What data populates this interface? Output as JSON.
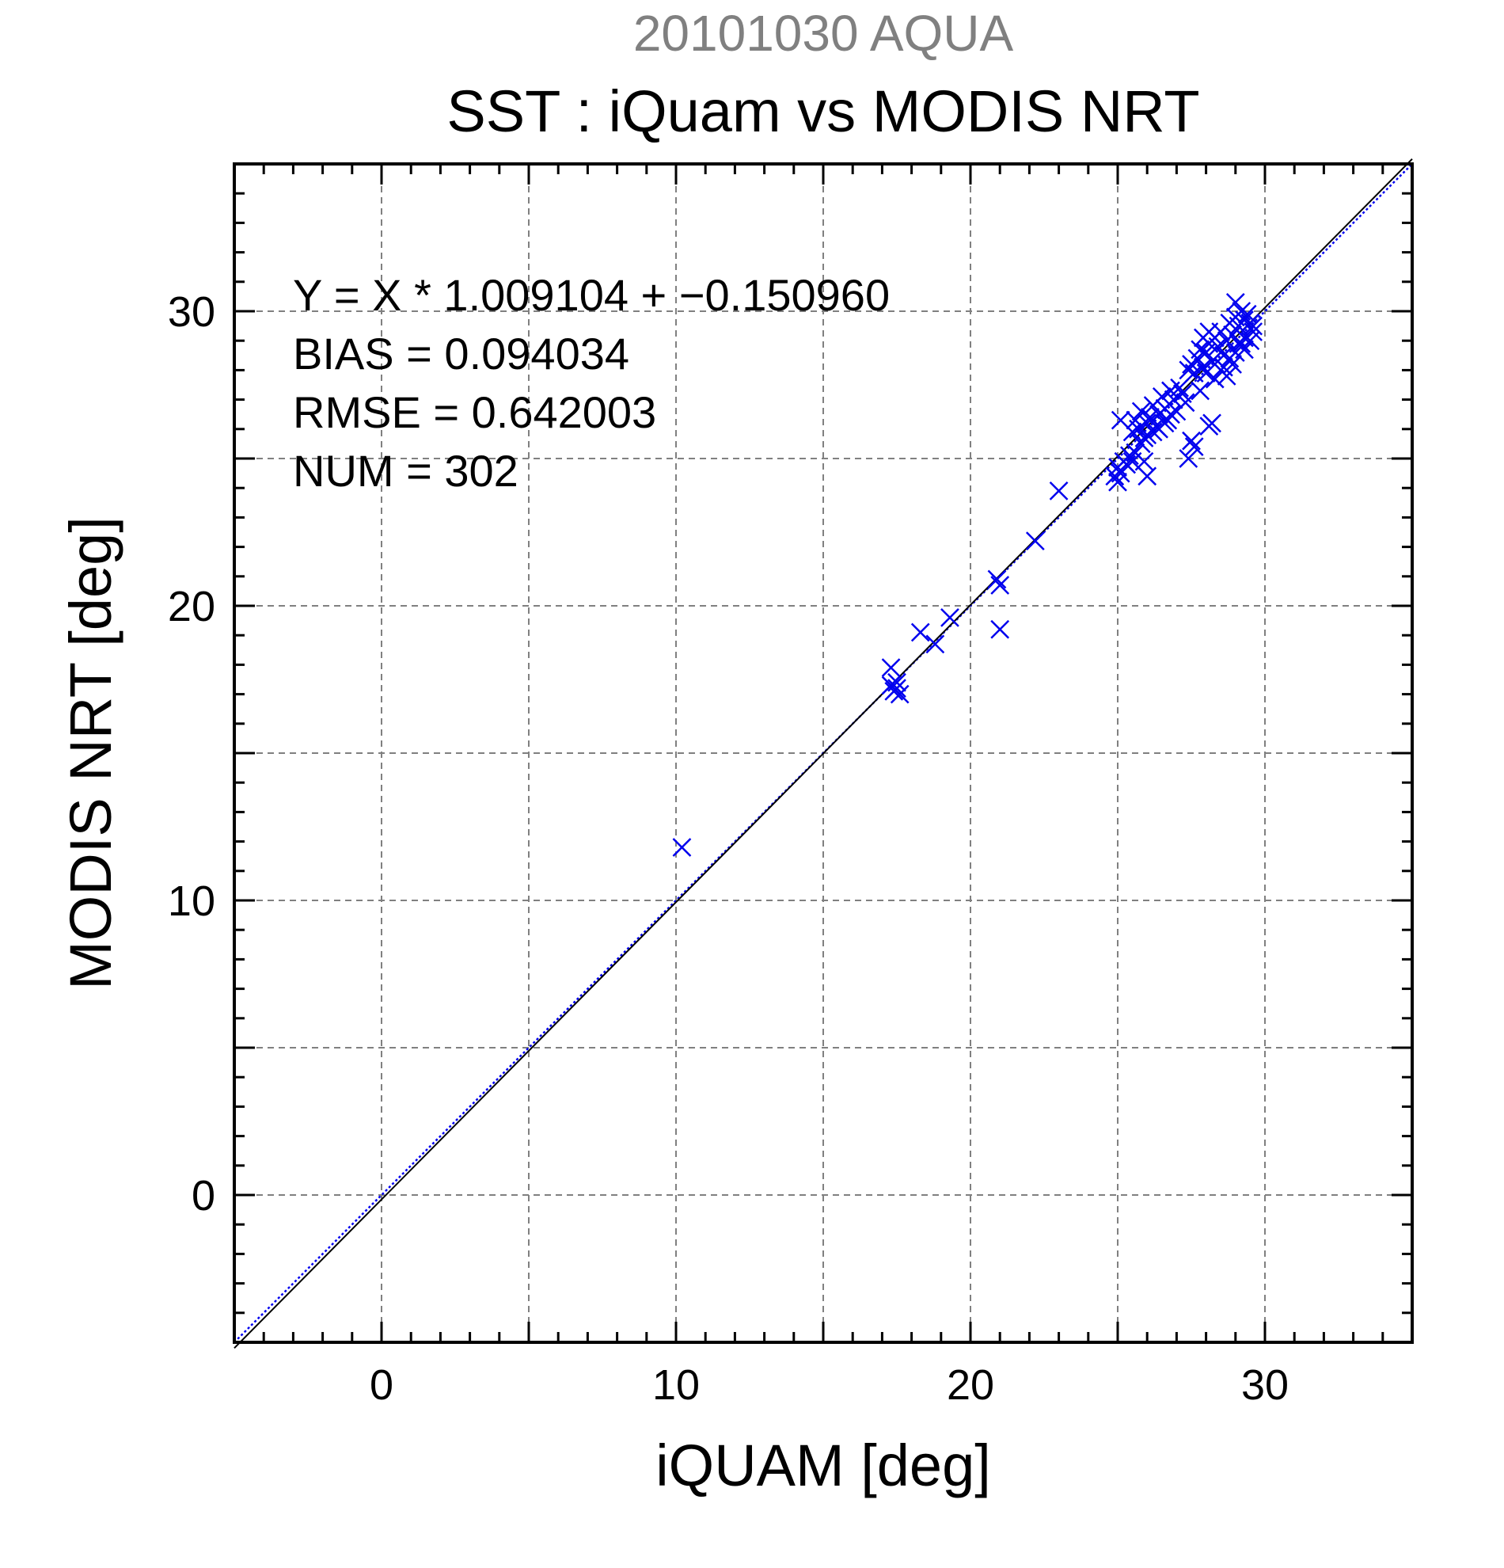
{
  "chart_data": {
    "type": "scatter",
    "date_label": "20101030 AQUA",
    "title": "SST : iQuam vs MODIS NRT",
    "xlabel": "iQUAM [deg]",
    "ylabel": "MODIS NRT [deg]",
    "xlim": [
      -5,
      35
    ],
    "ylim": [
      -5,
      35
    ],
    "xticks": [
      0,
      10,
      20,
      30
    ],
    "yticks": [
      0,
      10,
      20,
      30
    ],
    "grid": true,
    "marker": "x",
    "colors": {
      "points": "#0000ee",
      "one_to_one": "#0000ee",
      "fit": "#000000",
      "grid": "#808080"
    },
    "stats": [
      "Y = X * 1.009104 + −0.150960",
      "BIAS = 0.094034",
      "RMSE = 0.642003",
      "NUM = 302"
    ],
    "fit": {
      "slope": 1.009104,
      "intercept": -0.15096
    },
    "series": [
      {
        "points": [
          [
            10.2,
            11.8
          ],
          [
            17.3,
            17.9
          ],
          [
            17.3,
            17.3
          ],
          [
            17.4,
            17.1
          ],
          [
            17.5,
            17.4
          ],
          [
            17.6,
            17.0
          ],
          [
            17.5,
            17.2
          ],
          [
            18.3,
            19.1
          ],
          [
            18.8,
            18.7
          ],
          [
            19.3,
            19.6
          ],
          [
            20.9,
            20.9
          ],
          [
            21.0,
            20.7
          ],
          [
            21.0,
            19.2
          ],
          [
            22.2,
            22.2
          ],
          [
            23.0,
            23.9
          ],
          [
            24.9,
            24.4
          ],
          [
            25.0,
            24.2
          ],
          [
            25.0,
            24.7
          ],
          [
            25.1,
            24.5
          ],
          [
            25.2,
            24.9
          ],
          [
            25.3,
            24.8
          ],
          [
            25.1,
            26.3
          ],
          [
            25.4,
            25.1
          ],
          [
            25.5,
            24.9
          ],
          [
            25.6,
            25.2
          ],
          [
            25.9,
            24.9
          ],
          [
            26.0,
            24.4
          ],
          [
            25.5,
            25.9
          ],
          [
            25.6,
            26.3
          ],
          [
            25.7,
            26.0
          ],
          [
            25.8,
            26.6
          ],
          [
            25.9,
            25.7
          ],
          [
            26.0,
            26.2
          ],
          [
            26.1,
            26.4
          ],
          [
            26.2,
            26.8
          ],
          [
            26.3,
            26.1
          ],
          [
            26.4,
            26.5
          ],
          [
            26.5,
            27.1
          ],
          [
            26.6,
            26.7
          ],
          [
            26.7,
            26.3
          ],
          [
            26.8,
            27.3
          ],
          [
            26.9,
            27.0
          ],
          [
            27.0,
            26.6
          ],
          [
            27.1,
            27.4
          ],
          [
            27.2,
            27.2
          ],
          [
            27.3,
            26.9
          ],
          [
            27.4,
            28.0
          ],
          [
            25.8,
            25.5
          ],
          [
            26.0,
            25.8
          ],
          [
            26.2,
            25.9
          ],
          [
            26.4,
            26.0
          ],
          [
            26.6,
            26.2
          ],
          [
            26.8,
            26.5
          ],
          [
            27.4,
            25.0
          ],
          [
            27.5,
            25.6
          ],
          [
            27.6,
            25.4
          ],
          [
            28.1,
            26.1
          ],
          [
            28.2,
            26.2
          ],
          [
            27.5,
            28.2
          ],
          [
            27.6,
            27.9
          ],
          [
            27.7,
            28.4
          ],
          [
            27.8,
            28.7
          ],
          [
            27.9,
            28.1
          ],
          [
            28.0,
            28.6
          ],
          [
            28.1,
            28.9
          ],
          [
            28.2,
            28.3
          ],
          [
            28.3,
            29.1
          ],
          [
            28.4,
            28.8
          ],
          [
            28.5,
            29.3
          ],
          [
            28.6,
            28.5
          ],
          [
            28.7,
            29.0
          ],
          [
            28.8,
            29.6
          ],
          [
            28.9,
            29.2
          ],
          [
            29.0,
            30.3
          ],
          [
            29.0,
            29.8
          ],
          [
            29.1,
            29.5
          ],
          [
            29.2,
            30.0
          ],
          [
            29.3,
            29.7
          ],
          [
            29.4,
            29.9
          ],
          [
            29.5,
            29.6
          ],
          [
            29.6,
            29.3
          ],
          [
            29.3,
            29.1
          ],
          [
            27.8,
            27.3
          ],
          [
            28.0,
            27.9
          ],
          [
            28.3,
            27.7
          ],
          [
            28.5,
            28.0
          ],
          [
            28.7,
            27.8
          ],
          [
            28.9,
            28.2
          ],
          [
            29.0,
            28.6
          ],
          [
            29.1,
            28.9
          ],
          [
            29.3,
            28.7
          ],
          [
            29.5,
            29.0
          ],
          [
            29.6,
            29.5
          ],
          [
            27.9,
            29.1
          ],
          [
            28.1,
            29.3
          ],
          [
            28.6,
            28.1
          ],
          [
            28.8,
            28.4
          ],
          [
            29.2,
            28.9
          ]
        ]
      }
    ]
  }
}
